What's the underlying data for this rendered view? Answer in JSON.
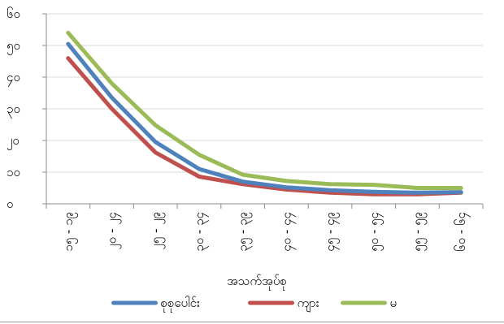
{
  "chart_data": {
    "type": "line",
    "xlabel": "အသက်အုပ်စု",
    "ylabel": "",
    "ylim": [
      0,
      60
    ],
    "yticks": [
      0,
      10,
      20,
      30,
      40,
      50,
      60
    ],
    "ytick_labels": [
      "၀",
      "၁၀",
      "၂၀",
      "၃၀",
      "၄၀",
      "၅၀",
      "၆၀"
    ],
    "categories": [
      "၁၅ - ၁၉",
      "၂၀ - ၂၄",
      "၂၅ - ၂၉",
      "၃၀ - ၃၄",
      "၃၅ - ၃၉",
      "၄၀ - ၄၄",
      "၄၅ - ၄၉",
      "၅၀ - ၅၄",
      "၅၅ - ၅၉",
      "၆၀ - ၆၄"
    ],
    "grid": "horizontal",
    "legend_position": "bottom",
    "series": [
      {
        "name": "စုစုပေါင်း",
        "color": "#4f81bd",
        "values": [
          50.5,
          33.5,
          19.5,
          11.0,
          7.0,
          5.2,
          4.3,
          3.8,
          3.5,
          3.7
        ]
      },
      {
        "name": "ကျား",
        "color": "#c0504d",
        "values": [
          46.0,
          30.0,
          16.2,
          8.6,
          6.2,
          4.5,
          3.5,
          3.0,
          3.0,
          3.5
        ]
      },
      {
        "name": "မ",
        "color": "#9bbb59",
        "values": [
          54.0,
          38.0,
          24.8,
          15.5,
          9.2,
          7.2,
          6.2,
          6.0,
          5.0,
          5.0
        ]
      }
    ]
  }
}
